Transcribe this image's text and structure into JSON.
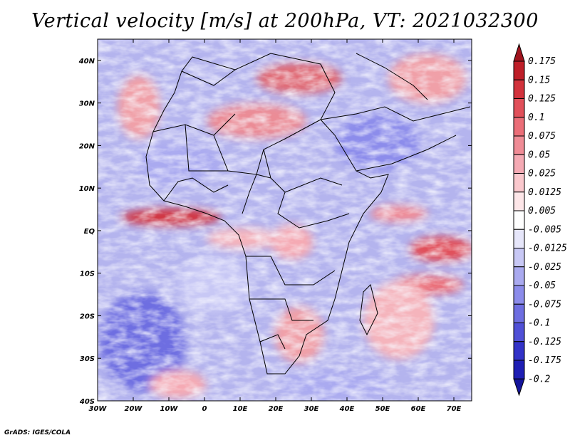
{
  "title": "Vertical velocity [m/s] at 200hPa, VT: 2021032300",
  "footer": "GrADS: IGES/COLA",
  "map": {
    "lon_range": [
      -30,
      75
    ],
    "lat_range": [
      -40,
      45
    ],
    "lon_ticks": [
      {
        "value": -30,
        "label": "30W"
      },
      {
        "value": -20,
        "label": "20W"
      },
      {
        "value": -10,
        "label": "10W"
      },
      {
        "value": 0,
        "label": "0"
      },
      {
        "value": 10,
        "label": "10E"
      },
      {
        "value": 20,
        "label": "20E"
      },
      {
        "value": 30,
        "label": "30E"
      },
      {
        "value": 40,
        "label": "40E"
      },
      {
        "value": 50,
        "label": "50E"
      },
      {
        "value": 60,
        "label": "60E"
      },
      {
        "value": 70,
        "label": "70E"
      }
    ],
    "lat_ticks": [
      {
        "value": 40,
        "label": "40N"
      },
      {
        "value": 30,
        "label": "30N"
      },
      {
        "value": 20,
        "label": "20N"
      },
      {
        "value": 10,
        "label": "10N"
      },
      {
        "value": 0,
        "label": "EQ"
      },
      {
        "value": -10,
        "label": "10S"
      },
      {
        "value": -20,
        "label": "20S"
      },
      {
        "value": -30,
        "label": "30S"
      },
      {
        "value": -40,
        "label": "40S"
      }
    ]
  },
  "colorbar": {
    "levels": [
      "0.175",
      "0.15",
      "0.125",
      "0.1",
      "0.075",
      "0.05",
      "0.025",
      "0.0125",
      "0.005",
      "-0.005",
      "-0.0125",
      "-0.025",
      "-0.05",
      "-0.075",
      "-0.1",
      "-0.125",
      "-0.175",
      "-0.2"
    ],
    "colors": [
      "#a0141e",
      "#be1e28",
      "#d2323c",
      "#e1505a",
      "#eb6e78",
      "#f08c96",
      "#f5aab4",
      "#fac8cd",
      "#fde6e8",
      "#ffffff",
      "#e6e6fa",
      "#c8c8f5",
      "#aaaaf0",
      "#8c8ceb",
      "#6e6ee1",
      "#5050d7",
      "#3232c8",
      "#1e1eb4",
      "#14149b"
    ]
  }
}
